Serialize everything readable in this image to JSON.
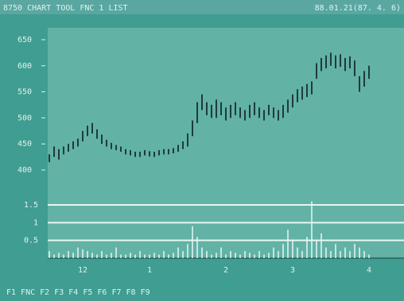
{
  "header": {
    "left": "8750 CHART  TOOL  FNC 1 LIST",
    "right": "88.01.21(87. 4. 6)"
  },
  "footer": "F1 FNC  F2 F3  F4 F5  F6 F7  F8 F9",
  "chart_data": {
    "type": "stock",
    "categories": [
      null,
      null,
      null,
      null,
      null,
      null,
      null,
      "12",
      null,
      null,
      null,
      null,
      null,
      null,
      null,
      null,
      null,
      null,
      null,
      null,
      null,
      "1",
      null,
      null,
      null,
      null,
      null,
      null,
      null,
      null,
      null,
      null,
      null,
      null,
      null,
      null,
      null,
      "2",
      null,
      null,
      null,
      null,
      null,
      null,
      null,
      null,
      null,
      null,
      null,
      null,
      null,
      "3",
      null,
      null,
      null,
      null,
      null,
      null,
      null,
      null,
      null,
      null,
      null,
      null,
      null,
      null,
      null,
      "4"
    ],
    "high": [
      430,
      445,
      440,
      445,
      450,
      455,
      460,
      475,
      485,
      490,
      478,
      468,
      458,
      452,
      448,
      445,
      440,
      438,
      435,
      435,
      438,
      436,
      435,
      438,
      440,
      440,
      442,
      448,
      455,
      470,
      495,
      530,
      545,
      530,
      525,
      535,
      530,
      520,
      525,
      530,
      520,
      515,
      525,
      530,
      520,
      515,
      525,
      520,
      515,
      525,
      535,
      545,
      555,
      560,
      565,
      570,
      605,
      615,
      620,
      625,
      620,
      622,
      615,
      618,
      610,
      580,
      590,
      600
    ],
    "low": [
      415,
      425,
      420,
      430,
      435,
      440,
      445,
      455,
      465,
      470,
      460,
      450,
      445,
      440,
      438,
      435,
      430,
      428,
      425,
      425,
      428,
      426,
      425,
      428,
      430,
      430,
      432,
      435,
      440,
      445,
      465,
      490,
      515,
      505,
      500,
      500,
      505,
      495,
      500,
      505,
      500,
      495,
      500,
      505,
      500,
      495,
      505,
      500,
      495,
      500,
      510,
      520,
      530,
      535,
      540,
      545,
      575,
      590,
      595,
      600,
      595,
      598,
      590,
      595,
      580,
      550,
      560,
      575
    ],
    "volume": [
      0.2,
      0.1,
      0.15,
      0.1,
      0.2,
      0.15,
      0.3,
      0.25,
      0.2,
      0.15,
      0.1,
      0.2,
      0.1,
      0.15,
      0.3,
      0.1,
      0.1,
      0.15,
      0.1,
      0.2,
      0.1,
      0.1,
      0.15,
      0.1,
      0.2,
      0.1,
      0.15,
      0.3,
      0.2,
      0.4,
      0.9,
      0.6,
      0.3,
      0.2,
      0.1,
      0.15,
      0.3,
      0.1,
      0.2,
      0.15,
      0.1,
      0.2,
      0.15,
      0.1,
      0.2,
      0.1,
      0.15,
      0.3,
      0.2,
      0.4,
      0.8,
      0.5,
      0.3,
      0.2,
      0.6,
      1.6,
      0.5,
      0.7,
      0.3,
      0.2,
      0.4,
      0.2,
      0.3,
      0.2,
      0.4,
      0.3,
      0.2,
      0.1
    ],
    "ylim": [
      400,
      650
    ],
    "yticks": [
      400,
      450,
      500,
      550,
      600,
      650
    ],
    "vlim": [
      0,
      1.5
    ],
    "vticks": [
      0.5,
      1,
      1.5
    ],
    "colors": {
      "bar": "#1d3c3a",
      "volume": "#e8f6f2",
      "grid": "#e8f6f2"
    }
  }
}
